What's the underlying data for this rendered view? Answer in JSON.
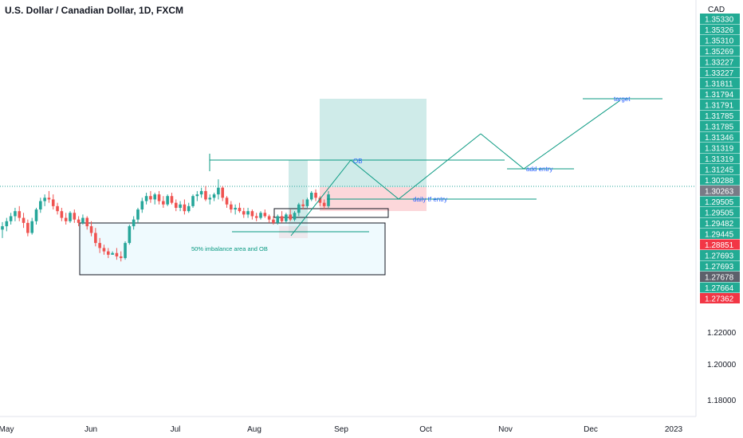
{
  "header": {
    "title": "U.S. Dollar / Canadian Dollar, 1D, FXCM"
  },
  "colors": {
    "up": "#26a69a",
    "down": "#ef5350",
    "green_label": "#22ab94",
    "red_label": "#f23645",
    "grey_label": "#787b86",
    "dark_label": "#5d606b"
  },
  "chart_data": {
    "type": "candlestick",
    "currency": "CAD",
    "ylim": [
      1.175,
      1.358
    ],
    "y_ticks": [
      "1.22000",
      "1.20000",
      "1.18000"
    ],
    "x_ticks": [
      "May",
      "Jun",
      "Jul",
      "Aug",
      "Sep",
      "Oct",
      "Nov",
      "Dec",
      "2023"
    ],
    "price_labels": [
      {
        "text": "1.35330",
        "kind": "green"
      },
      {
        "text": "1.35326",
        "kind": "green"
      },
      {
        "text": "1.35310",
        "kind": "green"
      },
      {
        "text": "1.35269",
        "kind": "green"
      },
      {
        "text": "1.33227",
        "kind": "green"
      },
      {
        "text": "1.33227",
        "kind": "green"
      },
      {
        "text": "1.31811",
        "kind": "green"
      },
      {
        "text": "1.31794",
        "kind": "green"
      },
      {
        "text": "1.31791",
        "kind": "green"
      },
      {
        "text": "1.31785",
        "kind": "green"
      },
      {
        "text": "1.31785",
        "kind": "green"
      },
      {
        "text": "1.31346",
        "kind": "green"
      },
      {
        "text": "1.31319",
        "kind": "green"
      },
      {
        "text": "1.31319",
        "kind": "green"
      },
      {
        "text": "1.31245",
        "kind": "green"
      },
      {
        "text": "1.30288",
        "kind": "green"
      },
      {
        "text": "1.30263",
        "kind": "grey"
      },
      {
        "text": "1.29505",
        "kind": "green"
      },
      {
        "text": "1.29505",
        "kind": "green"
      },
      {
        "text": "1.29482",
        "kind": "green"
      },
      {
        "text": "1.29445",
        "kind": "green"
      },
      {
        "text": "1.28851",
        "kind": "red"
      },
      {
        "text": "1.27693",
        "kind": "green"
      },
      {
        "text": "1.27693",
        "kind": "green"
      },
      {
        "text": "1.27678",
        "kind": "dark"
      },
      {
        "text": "1.27664",
        "kind": "green"
      },
      {
        "text": "1.27362",
        "kind": "red"
      }
    ],
    "annotations": {
      "ob": "OB",
      "target": "target",
      "add_entry": "add entry",
      "daily_tf_entry": "daily tf entry",
      "imbalance": "50% imbalance area and OB"
    },
    "candles": [
      [
        1.283,
        1.2875,
        1.278,
        1.285
      ],
      [
        1.285,
        1.29,
        1.282,
        1.288
      ],
      [
        1.288,
        1.293,
        1.286,
        1.291
      ],
      [
        1.291,
        1.296,
        1.288,
        1.294
      ],
      [
        1.294,
        1.297,
        1.288,
        1.29
      ],
      [
        1.29,
        1.293,
        1.284,
        1.287
      ],
      [
        1.287,
        1.289,
        1.279,
        1.281
      ],
      [
        1.281,
        1.29,
        1.28,
        1.288
      ],
      [
        1.288,
        1.296,
        1.286,
        1.295
      ],
      [
        1.295,
        1.302,
        1.293,
        1.3
      ],
      [
        1.3,
        1.304,
        1.297,
        1.302
      ],
      [
        1.302,
        1.306,
        1.299,
        1.301
      ],
      [
        1.301,
        1.304,
        1.295,
        1.297
      ],
      [
        1.297,
        1.299,
        1.292,
        1.294
      ],
      [
        1.294,
        1.296,
        1.288,
        1.29
      ],
      [
        1.29,
        1.293,
        1.286,
        1.288
      ],
      [
        1.288,
        1.294,
        1.287,
        1.293
      ],
      [
        1.293,
        1.295,
        1.287,
        1.289
      ],
      [
        1.289,
        1.291,
        1.285,
        1.287
      ],
      [
        1.287,
        1.292,
        1.286,
        1.29
      ],
      [
        1.29,
        1.291,
        1.283,
        1.285
      ],
      [
        1.285,
        1.288,
        1.279,
        1.281
      ],
      [
        1.281,
        1.284,
        1.273,
        1.275
      ],
      [
        1.275,
        1.278,
        1.269,
        1.272
      ],
      [
        1.272,
        1.274,
        1.268,
        1.27
      ],
      [
        1.27,
        1.272,
        1.266,
        1.268
      ],
      [
        1.268,
        1.27,
        1.268,
        1.269
      ],
      [
        1.269,
        1.272,
        1.265,
        1.267
      ],
      [
        1.267,
        1.27,
        1.264,
        1.266
      ],
      [
        1.266,
        1.276,
        1.265,
        1.275
      ],
      [
        1.275,
        1.286,
        1.274,
        1.285
      ],
      [
        1.285,
        1.291,
        1.283,
        1.289
      ],
      [
        1.289,
        1.296,
        1.287,
        1.295
      ],
      [
        1.295,
        1.302,
        1.293,
        1.3
      ],
      [
        1.3,
        1.305,
        1.298,
        1.303
      ],
      [
        1.303,
        1.306,
        1.299,
        1.301
      ],
      [
        1.301,
        1.305,
        1.298,
        1.304
      ],
      [
        1.304,
        1.306,
        1.298,
        1.3
      ],
      [
        1.3,
        1.303,
        1.296,
        1.298
      ],
      [
        1.298,
        1.304,
        1.297,
        1.303
      ],
      [
        1.303,
        1.305,
        1.298,
        1.299
      ],
      [
        1.299,
        1.301,
        1.294,
        1.296
      ],
      [
        1.296,
        1.3,
        1.294,
        1.298
      ],
      [
        1.298,
        1.301,
        1.292,
        1.294
      ],
      [
        1.294,
        1.299,
        1.293,
        1.297
      ],
      [
        1.297,
        1.304,
        1.296,
        1.303
      ],
      [
        1.303,
        1.306,
        1.3,
        1.304
      ],
      [
        1.304,
        1.308,
        1.302,
        1.306
      ],
      [
        1.306,
        1.309,
        1.3,
        1.301
      ],
      [
        1.301,
        1.304,
        1.298,
        1.302
      ],
      [
        1.302,
        1.305,
        1.3,
        1.304
      ],
      [
        1.304,
        1.313,
        1.301,
        1.308
      ],
      [
        1.308,
        1.309,
        1.3,
        1.302
      ],
      [
        1.302,
        1.303,
        1.296,
        1.298
      ],
      [
        1.298,
        1.3,
        1.293,
        1.295
      ],
      [
        1.295,
        1.298,
        1.292,
        1.296
      ],
      [
        1.296,
        1.299,
        1.293,
        1.294
      ],
      [
        1.294,
        1.296,
        1.29,
        1.292
      ],
      [
        1.292,
        1.296,
        1.29,
        1.294
      ],
      [
        1.294,
        1.295,
        1.289,
        1.291
      ],
      [
        1.291,
        1.293,
        1.288,
        1.29
      ],
      [
        1.29,
        1.294,
        1.289,
        1.293
      ],
      [
        1.293,
        1.295,
        1.29,
        1.291
      ],
      [
        1.291,
        1.292,
        1.287,
        1.289
      ],
      [
        1.289,
        1.291,
        1.286,
        1.287
      ],
      [
        1.287,
        1.292,
        1.286,
        1.291
      ],
      [
        1.291,
        1.294,
        1.287,
        1.288
      ],
      [
        1.288,
        1.293,
        1.287,
        1.292
      ],
      [
        1.292,
        1.295,
        1.288,
        1.289
      ],
      [
        1.289,
        1.294,
        1.288,
        1.293
      ],
      [
        1.293,
        1.299,
        1.291,
        1.298
      ],
      [
        1.298,
        1.301,
        1.295,
        1.297
      ],
      [
        1.297,
        1.302,
        1.296,
        1.301
      ],
      [
        1.301,
        1.306,
        1.3,
        1.305
      ],
      [
        1.305,
        1.307,
        1.3,
        1.302
      ],
      [
        1.302,
        1.303,
        1.297,
        1.299
      ],
      [
        1.299,
        1.301,
        1.295,
        1.297
      ],
      [
        1.297,
        1.306,
        1.296,
        1.304
      ]
    ]
  }
}
